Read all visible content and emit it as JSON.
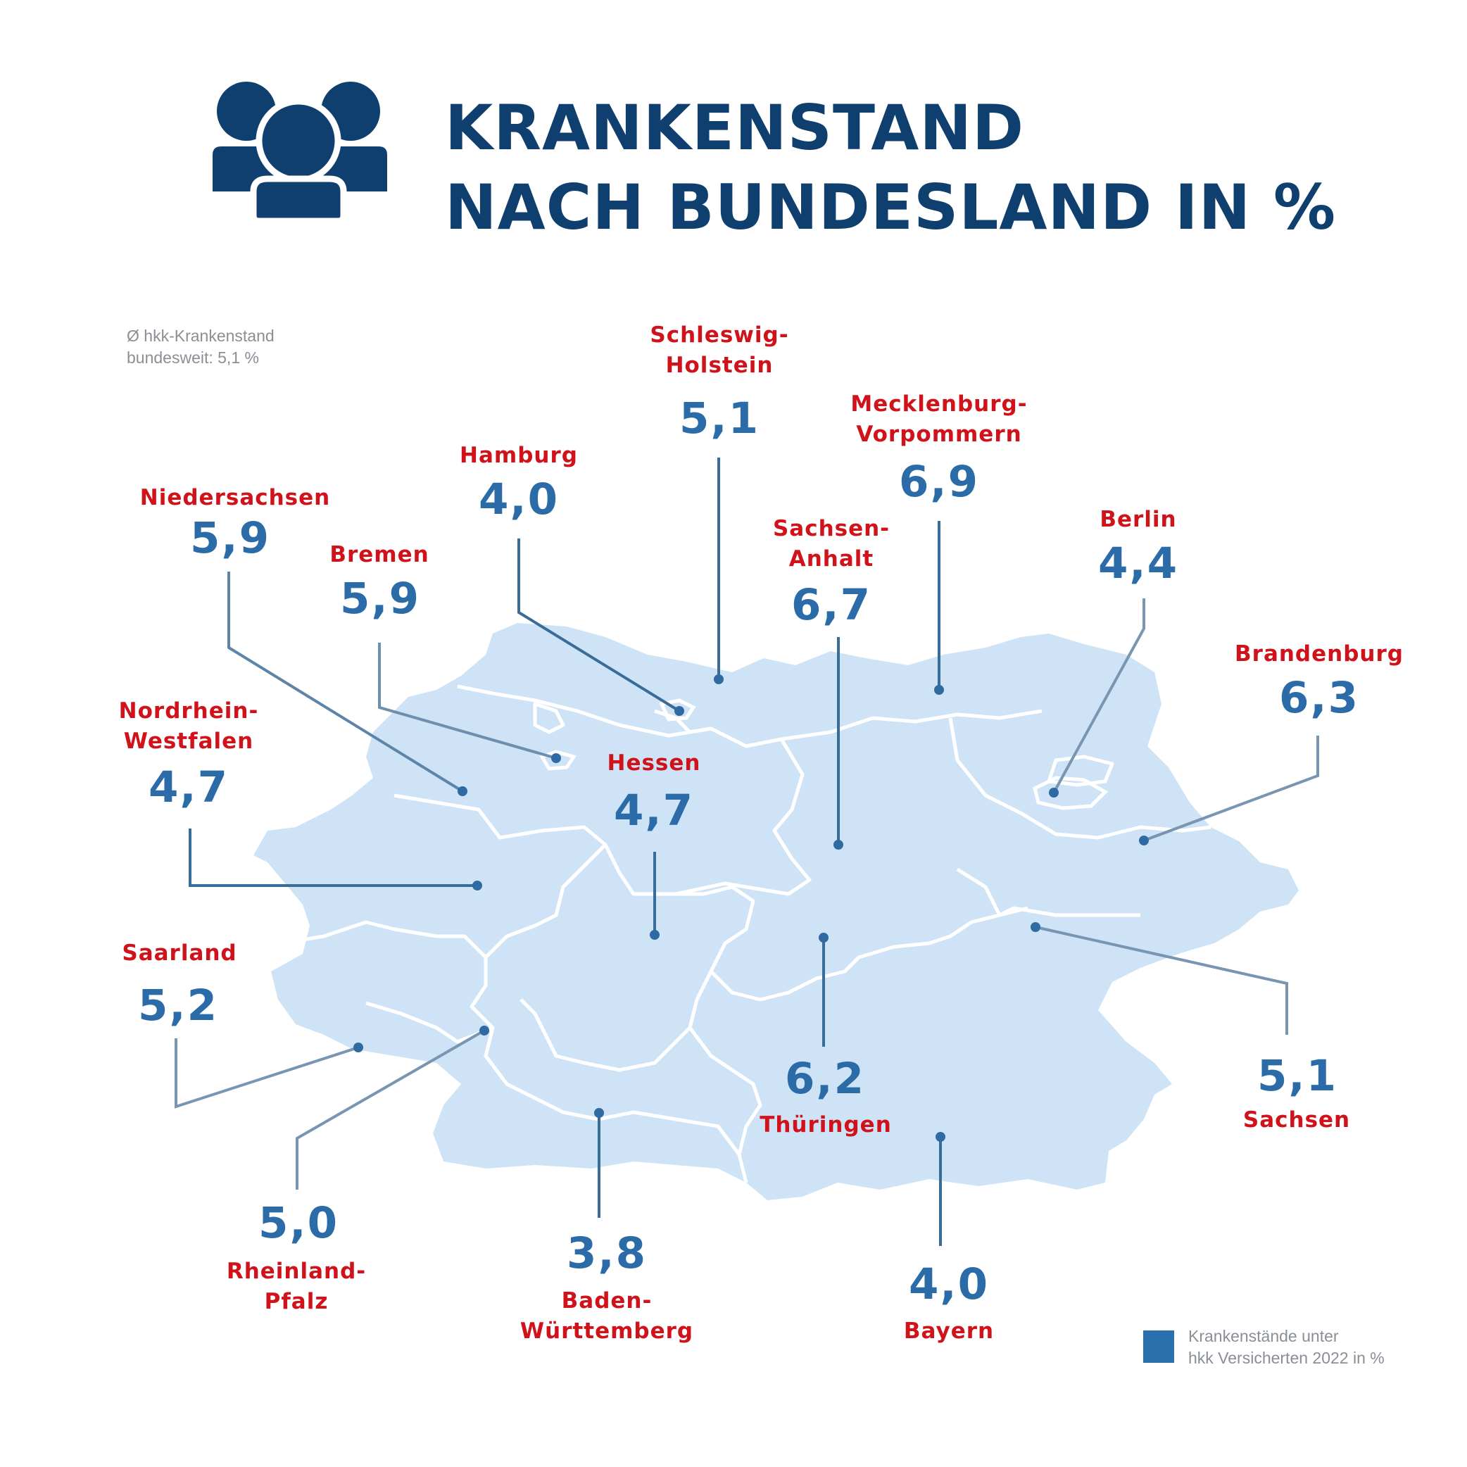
{
  "title": {
    "line1": "KRANKENSTAND",
    "line2": "NACH BUNDESLAND IN %"
  },
  "icon": "people-group-icon",
  "average_note": {
    "line1": "Ø hkk-Krankenstand",
    "line2": "bundesweit: 5,1 %"
  },
  "legend": {
    "text_line1": "Krankenstände unter",
    "text_line2": "hkk Versicherten 2022 in %",
    "swatch_color": "#2a70ad"
  },
  "colors": {
    "title": "#0e3f6e",
    "state_name": "#d0131b",
    "value": "#2b6ca8",
    "map_fill": "#cfe3f6",
    "border": "#ffffff",
    "leader_dark": "#3a6c98",
    "leader_light": "#a9bccb"
  },
  "states": [
    {
      "id": "schleswig-holstein",
      "name_lines": [
        "Schleswig-",
        "Holstein"
      ],
      "value": "5,1"
    },
    {
      "id": "mecklenburg-vorpommern",
      "name_lines": [
        "Mecklenburg-",
        "Vorpommern"
      ],
      "value": "6,9"
    },
    {
      "id": "hamburg",
      "name_lines": [
        "Hamburg"
      ],
      "value": "4,0"
    },
    {
      "id": "niedersachsen",
      "name_lines": [
        "Niedersachsen"
      ],
      "value": "5,9"
    },
    {
      "id": "bremen",
      "name_lines": [
        "Bremen"
      ],
      "value": "5,9"
    },
    {
      "id": "sachsen-anhalt",
      "name_lines": [
        "Sachsen-",
        "Anhalt"
      ],
      "value": "6,7"
    },
    {
      "id": "berlin",
      "name_lines": [
        "Berlin"
      ],
      "value": "4,4"
    },
    {
      "id": "brandenburg",
      "name_lines": [
        "Brandenburg"
      ],
      "value": "6,3"
    },
    {
      "id": "nordrhein-westfalen",
      "name_lines": [
        "Nordrhein-",
        "Westfalen"
      ],
      "value": "4,7"
    },
    {
      "id": "hessen",
      "name_lines": [
        "Hessen"
      ],
      "value": "4,7"
    },
    {
      "id": "saarland",
      "name_lines": [
        "Saarland"
      ],
      "value": "5,2"
    },
    {
      "id": "thueringen",
      "name_lines": [
        "Thüringen"
      ],
      "value": "6,2"
    },
    {
      "id": "sachsen",
      "name_lines": [
        "Sachsen"
      ],
      "value": "5,1"
    },
    {
      "id": "rheinland-pfalz",
      "name_lines": [
        "Rheinland-",
        "Pfalz"
      ],
      "value": "5,0"
    },
    {
      "id": "baden-wuerttemberg",
      "name_lines": [
        "Baden-",
        "Württemberg"
      ],
      "value": "3,8"
    },
    {
      "id": "bayern",
      "name_lines": [
        "Bayern"
      ],
      "value": "4,0"
    }
  ]
}
